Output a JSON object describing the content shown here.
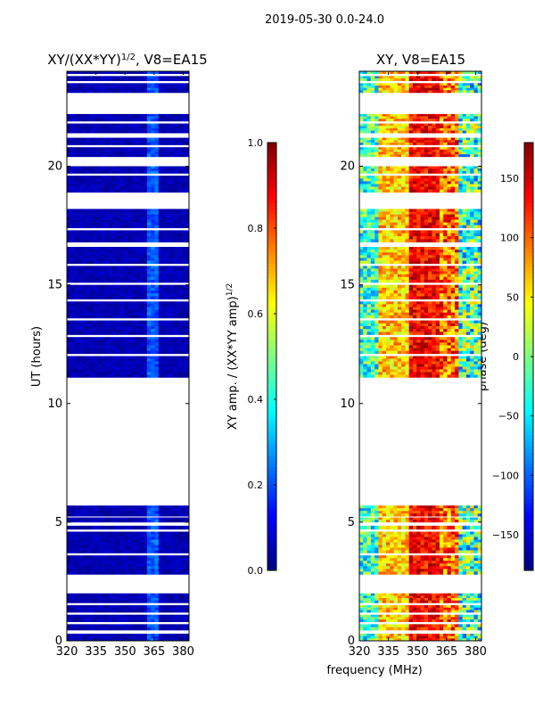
{
  "suptitle": "2019-05-30 0.0-24.0",
  "ylabel": "UT (hours)",
  "xlabel": "frequency (MHz)",
  "colors": {
    "background": "#ffffff",
    "axes": "#000000",
    "empty": "#ffffff"
  },
  "chart_data": [
    {
      "id": "normalized",
      "type": "heatmap",
      "title": "XY/(XX*YY)^1/2, V8=EA15",
      "title_main": "XY/(XX*YY)",
      "title_sup": "1/2",
      "title_tail": ", V8=EA15",
      "x": {
        "label": "frequency (MHz)",
        "range": [
          320,
          383
        ],
        "ticks": [
          320,
          335,
          350,
          365,
          380
        ]
      },
      "y": {
        "label": "UT (hours)",
        "range": [
          0,
          24
        ],
        "ticks": [
          0,
          5,
          10,
          15,
          20
        ]
      },
      "colorbar": {
        "label_main": "XY amp. / (XX*YY amp)",
        "label_sup": "1/2",
        "range": [
          0.0,
          1.0
        ],
        "ticks": [
          "0.0",
          "0.2",
          "0.4",
          "0.6",
          "0.8",
          "1.0"
        ],
        "colormap": "jet"
      }
    },
    {
      "id": "phase",
      "type": "heatmap",
      "title": "XY, V8=EA15",
      "x": {
        "label": "frequency (MHz)",
        "range": [
          320,
          383
        ],
        "ticks": [
          320,
          335,
          350,
          365,
          380
        ]
      },
      "y": {
        "label": "UT (hours)",
        "range": [
          0,
          24
        ],
        "ticks": [
          0,
          5,
          10,
          15,
          20
        ]
      },
      "colorbar": {
        "label": "phase (deg)",
        "range": [
          -180,
          180
        ],
        "ticks": [
          "150",
          "100",
          "50",
          "0",
          "−50",
          "−100",
          "−150"
        ],
        "tick_values": [
          150,
          100,
          50,
          0,
          -50,
          -100,
          -150
        ],
        "colormap": "jet"
      }
    }
  ],
  "data_segments_hours": [
    [
      0.0,
      0.3
    ],
    [
      0.45,
      0.7
    ],
    [
      0.8,
      1.1
    ],
    [
      1.2,
      1.5
    ],
    [
      1.6,
      2.0
    ],
    [
      2.8,
      3.6
    ],
    [
      3.7,
      4.6
    ],
    [
      4.7,
      4.85
    ],
    [
      5.0,
      5.2
    ],
    [
      5.25,
      5.7
    ],
    [
      11.1,
      12.0
    ],
    [
      12.1,
      12.8
    ],
    [
      12.9,
      13.5
    ],
    [
      13.6,
      14.3
    ],
    [
      14.4,
      15.0
    ],
    [
      15.1,
      15.8
    ],
    [
      15.9,
      16.6
    ],
    [
      16.8,
      17.3
    ],
    [
      17.4,
      18.2
    ],
    [
      18.9,
      19.6
    ],
    [
      19.7,
      20.0
    ],
    [
      20.4,
      20.8
    ],
    [
      20.9,
      21.2
    ],
    [
      21.4,
      21.8
    ],
    [
      21.9,
      22.2
    ],
    [
      23.1,
      23.5
    ],
    [
      23.6,
      23.8
    ],
    [
      23.9,
      24.0
    ]
  ]
}
